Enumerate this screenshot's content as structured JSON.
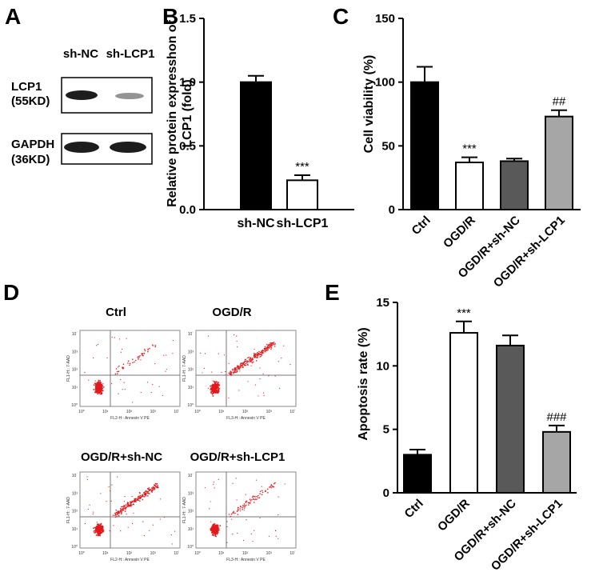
{
  "panels": {
    "A": {
      "letter": "A",
      "lane_labels": [
        "sh-NC",
        "sh-LCP1"
      ],
      "bands": [
        {
          "name": "LCP1",
          "kd": "(55KD)",
          "intensity": [
            0.95,
            0.45
          ]
        },
        {
          "name": "GAPDH",
          "kd": "(36KD)",
          "intensity": [
            0.95,
            0.95
          ]
        }
      ]
    },
    "B": {
      "letter": "B"
    },
    "C": {
      "letter": "C"
    },
    "D": {
      "letter": "D",
      "plots": [
        {
          "title": "Ctrl",
          "ylabel": "FL1-H:: 7-AAD",
          "xlabel": "FL2-H:: Annexin V PE"
        },
        {
          "title": "OGD/R",
          "ylabel": "FL1-H:: 7-AAD",
          "xlabel": "FL3-H:: Annexin V PE"
        },
        {
          "title": "OGD/R+sh-NC",
          "ylabel": "FL1-H:: 7-AAD",
          "xlabel": "FL2-H:: Annexin V PE"
        },
        {
          "title": "OGD/R+sh-LCP1",
          "ylabel": "FL1-H:: 7-AAD",
          "xlabel": "FL3-H:: Annexin V PE"
        }
      ],
      "decade_labels": [
        "10´",
        "10³",
        "10²",
        "10¹",
        "10⁰"
      ]
    },
    "E": {
      "letter": "E"
    }
  },
  "chart_data": [
    {
      "id": "B",
      "type": "bar",
      "categories": [
        "sh-NC",
        "sh-LCP1"
      ],
      "values": [
        1.0,
        0.23
      ],
      "errors": [
        0.05,
        0.04
      ],
      "fills": [
        "#000000",
        "#ffffff"
      ],
      "annotations": [
        "",
        "***"
      ],
      "ylabel": "Relative protein expresshon of LCP1 (fold)",
      "ylim": [
        0,
        1.5
      ],
      "yticks": [
        0.0,
        0.5,
        1.0,
        1.5
      ],
      "ytick_labels": [
        "0.0",
        "0.5",
        "1.0",
        "1.5"
      ]
    },
    {
      "id": "C",
      "type": "bar",
      "categories": [
        "Ctrl",
        "OGD/R",
        "OGD/R+sh-NC",
        "OGD/R+sh-LCP1"
      ],
      "values": [
        100,
        37,
        38,
        73
      ],
      "errors": [
        12,
        4,
        2,
        5
      ],
      "fills": [
        "#000000",
        "#ffffff",
        "#595959",
        "#a6a6a6"
      ],
      "annotations": [
        "",
        "***",
        "",
        "##"
      ],
      "ylabel": "Cell viability (%)",
      "ylim": [
        0,
        150
      ],
      "yticks": [
        0,
        50,
        100,
        150
      ],
      "ytick_labels": [
        "0",
        "50",
        "100",
        "150"
      ]
    },
    {
      "id": "E",
      "type": "bar",
      "categories": [
        "Ctrl",
        "OGD/R",
        "OGD/R+sh-NC",
        "OGD/R+sh-LCP1"
      ],
      "values": [
        3.0,
        12.6,
        11.6,
        4.8
      ],
      "errors": [
        0.4,
        0.9,
        0.8,
        0.5
      ],
      "fills": [
        "#000000",
        "#ffffff",
        "#595959",
        "#a6a6a6"
      ],
      "annotations": [
        "",
        "***",
        "",
        "###"
      ],
      "ylabel": "Apoptosis rate (%)",
      "ylim": [
        0,
        15
      ],
      "yticks": [
        0,
        5,
        10,
        15
      ],
      "ytick_labels": [
        "0",
        "5",
        "10",
        "15"
      ]
    }
  ]
}
